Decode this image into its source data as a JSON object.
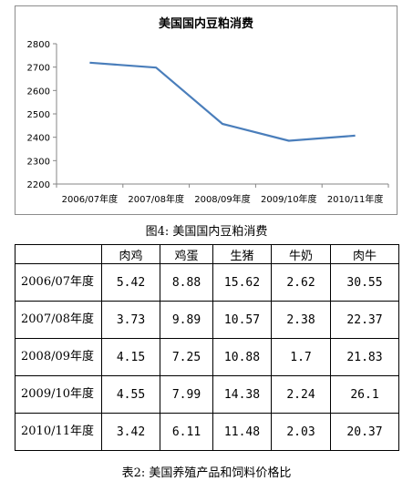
{
  "chart_data": {
    "type": "line",
    "title": "美国国内豆粕消费",
    "categories": [
      "2006/07年度",
      "2007/08年度",
      "2008/09年度",
      "2009/10年度",
      "2010/11年度"
    ],
    "values": [
      2719,
      2698,
      2457,
      2385,
      2407
    ],
    "ylim": [
      2200,
      2800
    ],
    "yticks": [
      "2800",
      "2700",
      "2600",
      "2500",
      "2400",
      "2300",
      "2200"
    ],
    "grid": false,
    "line_color": "#4a7ebb"
  },
  "figure_caption": "图4: 美国国内豆粕消费",
  "table": {
    "headers": [
      "",
      "肉鸡",
      "鸡蛋",
      "生猪",
      "牛奶",
      "肉牛"
    ],
    "rows": [
      {
        "year": "2006/07年度",
        "values": [
          "5.42",
          "8.88",
          "15.62",
          "2.62",
          "30.55"
        ]
      },
      {
        "year": "2007/08年度",
        "values": [
          "3.73",
          "9.89",
          "10.57",
          "2.38",
          "22.37"
        ]
      },
      {
        "year": "2008/09年度",
        "values": [
          "4.15",
          "7.25",
          "10.88",
          "1.7",
          "21.83"
        ]
      },
      {
        "year": "2009/10年度",
        "values": [
          "4.55",
          "7.99",
          "14.38",
          "2.24",
          "26.1"
        ]
      },
      {
        "year": "2010/11年度",
        "values": [
          "3.42",
          "6.11",
          "11.48",
          "2.03",
          "20.37"
        ]
      }
    ]
  },
  "table_caption": "表2: 美国养殖产品和饲料价格比"
}
